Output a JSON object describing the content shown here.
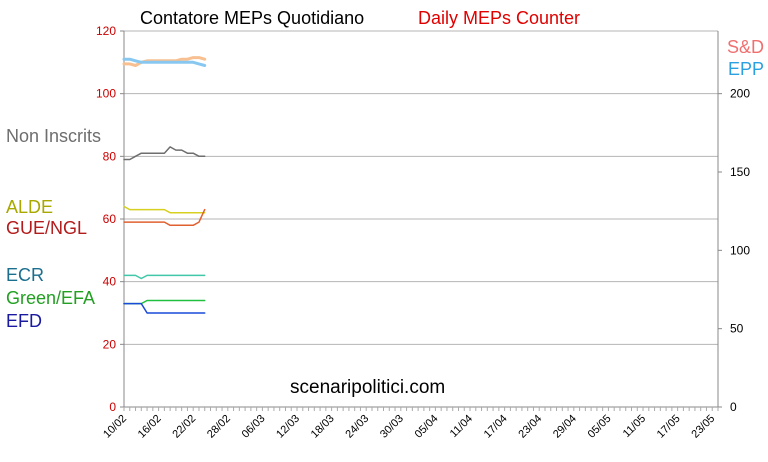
{
  "title_italian": "Contatore MEPs Quotidiano",
  "title_english": "Daily MEPs Counter",
  "watermark": "scenaripolitici.com",
  "chart_data": {
    "type": "line",
    "x_tick_labels": [
      "10/02",
      "16/02",
      "22/02",
      "28/02",
      "06/03",
      "12/03",
      "18/03",
      "24/03",
      "30/03",
      "05/04",
      "11/04",
      "17/04",
      "23/04",
      "29/04",
      "05/05",
      "11/05",
      "17/05",
      "23/05"
    ],
    "x_tick_step_days": 6,
    "x_days_total": 103,
    "ylim_left": [
      0,
      120
    ],
    "yticks_left": [
      0,
      20,
      40,
      60,
      80,
      100,
      120
    ],
    "ylim_right": [
      0,
      240
    ],
    "yticks_right": [
      0,
      50,
      100,
      150,
      200
    ],
    "grid": true,
    "left_labels": [
      {
        "name": "Non Inscrits",
        "color": "#6e6e6e",
        "anchor": 80
      },
      {
        "name": "ALDE",
        "color": "#a8a800",
        "anchor": 63
      },
      {
        "name": "GUE/NGL",
        "color": "#b31b1b",
        "anchor": 59
      },
      {
        "name": "ECR",
        "color": "#1a6e8e",
        "anchor": 42
      },
      {
        "name": "Green/EFA",
        "color": "#22a022",
        "anchor": 33
      },
      {
        "name": "EFD",
        "color": "#1a1aa0",
        "anchor": 30
      }
    ],
    "right_labels": [
      {
        "name": "S&D",
        "color": "#f07070"
      },
      {
        "name": "EPP",
        "color": "#2aa0e0"
      }
    ],
    "series": [
      {
        "name": "S&D",
        "color": "#f8c090",
        "axis": "right",
        "days": [
          0,
          1,
          2,
          3,
          4,
          5,
          6,
          7,
          8,
          9,
          10,
          11,
          12,
          13,
          14
        ],
        "values": [
          219,
          219,
          218,
          220,
          221,
          221,
          221,
          221,
          221,
          221,
          222,
          222,
          223,
          223,
          222
        ]
      },
      {
        "name": "EPP",
        "color": "#88c8f0",
        "axis": "right",
        "days": [
          0,
          1,
          2,
          3,
          4,
          5,
          6,
          7,
          8,
          9,
          10,
          11,
          12,
          13,
          14
        ],
        "values": [
          222,
          222,
          221,
          220,
          220,
          220,
          220,
          220,
          220,
          220,
          220,
          220,
          220,
          219,
          218
        ]
      },
      {
        "name": "Non Inscrits",
        "color": "#6e6e6e",
        "axis": "left",
        "days": [
          0,
          1,
          2,
          3,
          4,
          5,
          6,
          7,
          8,
          9,
          10,
          11,
          12,
          13,
          14
        ],
        "values": [
          79,
          79,
          80,
          81,
          81,
          81,
          81,
          81,
          83,
          82,
          82,
          81,
          81,
          80,
          80
        ]
      },
      {
        "name": "ALDE",
        "color": "#d8d020",
        "axis": "left",
        "days": [
          0,
          1,
          2,
          3,
          4,
          5,
          6,
          7,
          8,
          9,
          10,
          11,
          12,
          13,
          14
        ],
        "values": [
          64,
          63,
          63,
          63,
          63,
          63,
          63,
          63,
          62,
          62,
          62,
          62,
          62,
          62,
          62
        ]
      },
      {
        "name": "GUE/NGL",
        "color": "#e06030",
        "axis": "left",
        "days": [
          0,
          1,
          2,
          3,
          4,
          5,
          6,
          7,
          8,
          9,
          10,
          11,
          12,
          13,
          14
        ],
        "values": [
          59,
          59,
          59,
          59,
          59,
          59,
          59,
          59,
          58,
          58,
          58,
          58,
          58,
          59,
          63
        ]
      },
      {
        "name": "ECR",
        "color": "#40c8a8",
        "axis": "left",
        "days": [
          0,
          1,
          2,
          3,
          4,
          5,
          6,
          7,
          8,
          9,
          10,
          11,
          12,
          13,
          14
        ],
        "values": [
          42,
          42,
          42,
          41,
          42,
          42,
          42,
          42,
          42,
          42,
          42,
          42,
          42,
          42,
          42
        ]
      },
      {
        "name": "Green/EFA",
        "color": "#22c040",
        "axis": "left",
        "days": [
          0,
          1,
          2,
          3,
          4,
          5,
          6,
          7,
          8,
          9,
          10,
          11,
          12,
          13,
          14
        ],
        "values": [
          33,
          33,
          33,
          33,
          34,
          34,
          34,
          34,
          34,
          34,
          34,
          34,
          34,
          34,
          34
        ]
      },
      {
        "name": "EFD",
        "color": "#1a4ad8",
        "axis": "left",
        "days": [
          0,
          1,
          2,
          3,
          4,
          5,
          6,
          7,
          8,
          9,
          10,
          11,
          12,
          13,
          14
        ],
        "values": [
          33,
          33,
          33,
          33,
          30,
          30,
          30,
          30,
          30,
          30,
          30,
          30,
          30,
          30,
          30
        ]
      }
    ]
  }
}
